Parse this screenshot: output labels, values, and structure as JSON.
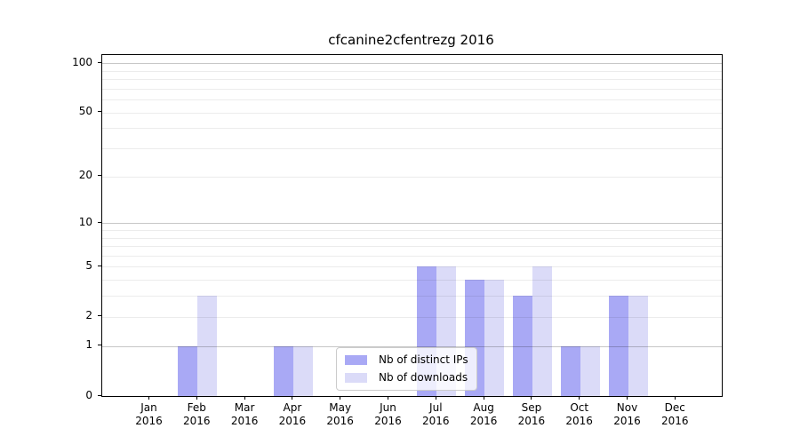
{
  "chart_data": {
    "type": "bar",
    "title": "cfcanine2cfentrezg 2016",
    "categories": [
      "Jan",
      "Feb",
      "Mar",
      "Apr",
      "May",
      "Jun",
      "Jul",
      "Aug",
      "Sep",
      "Oct",
      "Nov",
      "Dec"
    ],
    "year": "2016",
    "series": [
      {
        "name": "Nb of distinct IPs",
        "color": "#a9a9f5",
        "values": [
          0,
          1,
          0,
          1,
          0,
          0,
          5,
          4,
          3,
          1,
          3,
          0
        ]
      },
      {
        "name": "Nb of downloads",
        "color": "#dbdbf8",
        "values": [
          0,
          3,
          0,
          1,
          0,
          0,
          5,
          4,
          5,
          1,
          3,
          0
        ]
      }
    ],
    "y_scale": "log1p",
    "ylim": [
      0,
      112
    ],
    "y_tick_labels": [
      0,
      1,
      2,
      5,
      10,
      20,
      50,
      100
    ],
    "grid_major": [
      1,
      10,
      100
    ],
    "grid_minor": [
      2,
      3,
      4,
      5,
      6,
      7,
      8,
      9,
      20,
      30,
      40,
      50,
      60,
      70,
      80,
      90
    ],
    "legend_position": "bottom-center",
    "grid": "on"
  }
}
